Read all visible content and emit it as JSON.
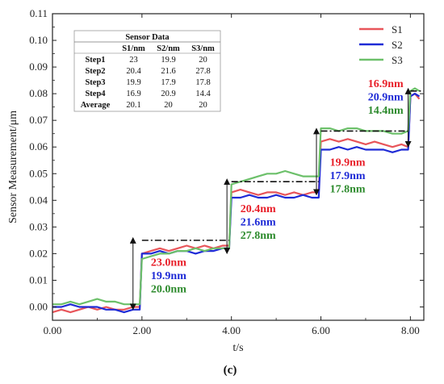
{
  "panel_label": "(c)",
  "chart_data": {
    "type": "line",
    "xlabel": "t/s",
    "ylabel": "Sensor Measurement/μm",
    "xlim": [
      0,
      8.3
    ],
    "ylim": [
      -0.005,
      0.11
    ],
    "xticks": [
      "0.00",
      "2.00",
      "4.00",
      "6.00",
      "8.00"
    ],
    "xtick_values": [
      0,
      2,
      4,
      6,
      8
    ],
    "yticks": [
      "0.00",
      "0.01",
      "0.02",
      "0.03",
      "0.04",
      "0.05",
      "0.06",
      "0.07",
      "0.08",
      "0.09",
      "0.10",
      "0.11"
    ],
    "ytick_values": [
      0,
      0.01,
      0.02,
      0.03,
      0.04,
      0.05,
      0.06,
      0.07,
      0.08,
      0.09,
      0.1,
      0.11
    ],
    "legend_position": "top-right",
    "series": [
      {
        "name": "S1",
        "color": "#e8555a",
        "x": [
          0.0,
          0.2,
          0.4,
          0.6,
          0.8,
          1.0,
          1.2,
          1.4,
          1.6,
          1.8,
          1.95,
          2.0,
          2.2,
          2.4,
          2.6,
          2.8,
          3.0,
          3.2,
          3.4,
          3.6,
          3.8,
          3.95,
          4.0,
          4.2,
          4.4,
          4.6,
          4.8,
          5.0,
          5.2,
          5.4,
          5.6,
          5.8,
          5.95,
          6.0,
          6.2,
          6.4,
          6.6,
          6.8,
          7.0,
          7.2,
          7.4,
          7.6,
          7.8,
          7.95,
          8.0,
          8.1,
          8.2
        ],
        "y": [
          -0.002,
          -0.001,
          -0.002,
          -0.001,
          0.0,
          -0.001,
          0.0,
          -0.001,
          -0.001,
          0.0,
          0.0,
          0.02,
          0.021,
          0.022,
          0.021,
          0.022,
          0.023,
          0.022,
          0.023,
          0.022,
          0.023,
          0.023,
          0.043,
          0.044,
          0.043,
          0.042,
          0.043,
          0.043,
          0.042,
          0.043,
          0.042,
          0.043,
          0.043,
          0.062,
          0.063,
          0.062,
          0.063,
          0.062,
          0.061,
          0.062,
          0.061,
          0.06,
          0.061,
          0.06,
          0.079,
          0.08,
          0.078
        ]
      },
      {
        "name": "S2",
        "color": "#1f2bd6",
        "x": [
          0.0,
          0.2,
          0.4,
          0.6,
          0.8,
          1.0,
          1.2,
          1.4,
          1.6,
          1.8,
          1.95,
          2.0,
          2.2,
          2.4,
          2.6,
          2.8,
          3.0,
          3.2,
          3.4,
          3.6,
          3.8,
          3.95,
          4.0,
          4.2,
          4.4,
          4.6,
          4.8,
          5.0,
          5.2,
          5.4,
          5.6,
          5.8,
          5.95,
          6.0,
          6.2,
          6.4,
          6.6,
          6.8,
          7.0,
          7.2,
          7.4,
          7.6,
          7.8,
          7.95,
          8.0,
          8.1,
          8.2
        ],
        "y": [
          0.0,
          0.0,
          0.001,
          0.0,
          0.0,
          0.0,
          -0.001,
          -0.001,
          -0.002,
          -0.001,
          -0.001,
          0.02,
          0.02,
          0.021,
          0.02,
          0.021,
          0.021,
          0.02,
          0.021,
          0.021,
          0.022,
          0.022,
          0.041,
          0.041,
          0.042,
          0.041,
          0.041,
          0.042,
          0.041,
          0.041,
          0.042,
          0.041,
          0.041,
          0.059,
          0.059,
          0.06,
          0.059,
          0.06,
          0.059,
          0.059,
          0.059,
          0.058,
          0.059,
          0.059,
          0.079,
          0.08,
          0.079
        ]
      },
      {
        "name": "S3",
        "color": "#6cc06a",
        "x": [
          0.0,
          0.2,
          0.4,
          0.6,
          0.8,
          1.0,
          1.2,
          1.4,
          1.6,
          1.8,
          1.95,
          2.0,
          2.2,
          2.4,
          2.6,
          2.8,
          3.0,
          3.2,
          3.4,
          3.6,
          3.8,
          3.95,
          4.0,
          4.2,
          4.4,
          4.6,
          4.8,
          5.0,
          5.2,
          5.4,
          5.6,
          5.8,
          5.95,
          6.0,
          6.2,
          6.4,
          6.6,
          6.8,
          7.0,
          7.2,
          7.4,
          7.6,
          7.8,
          7.95,
          8.0,
          8.1,
          8.2
        ],
        "y": [
          0.001,
          0.001,
          0.002,
          0.001,
          0.002,
          0.003,
          0.002,
          0.002,
          0.001,
          0.001,
          0.001,
          0.018,
          0.019,
          0.02,
          0.02,
          0.021,
          0.021,
          0.022,
          0.021,
          0.022,
          0.022,
          0.022,
          0.046,
          0.047,
          0.048,
          0.049,
          0.05,
          0.05,
          0.051,
          0.05,
          0.049,
          0.049,
          0.049,
          0.067,
          0.067,
          0.066,
          0.067,
          0.067,
          0.066,
          0.066,
          0.066,
          0.065,
          0.065,
          0.066,
          0.081,
          0.082,
          0.081
        ]
      }
    ],
    "reference_steps": {
      "color": "#111111",
      "segments": [
        {
          "x": [
            2.0,
            3.95
          ],
          "y": 0.025
        },
        {
          "x": [
            4.0,
            5.95
          ],
          "y": 0.047
        },
        {
          "x": [
            6.0,
            7.95
          ],
          "y": 0.066
        },
        {
          "x": [
            8.0,
            8.3
          ],
          "y": 0.081
        }
      ]
    },
    "step_arrows": [
      {
        "x": 1.8,
        "from": 0.0,
        "to": 0.025
      },
      {
        "x": 3.9,
        "from": 0.021,
        "to": 0.047
      },
      {
        "x": 5.9,
        "from": 0.043,
        "to": 0.066
      },
      {
        "x": 7.95,
        "from": 0.061,
        "to": 0.081
      }
    ],
    "annotations": [
      {
        "x": 2.2,
        "lines": [
          {
            "text": "23.0nm",
            "color": "#e8202a",
            "y": 0.0155
          },
          {
            "text": "19.9nm",
            "color": "#1f2bd6",
            "y": 0.0105
          },
          {
            "text": "20.0nm",
            "color": "#2e8b2e",
            "y": 0.0055
          }
        ]
      },
      {
        "x": 4.2,
        "lines": [
          {
            "text": "20.4nm",
            "color": "#e8202a",
            "y": 0.0355
          },
          {
            "text": "21.6nm",
            "color": "#1f2bd6",
            "y": 0.0305
          },
          {
            "text": "27.8nm",
            "color": "#2e8b2e",
            "y": 0.0255
          }
        ]
      },
      {
        "x": 6.2,
        "lines": [
          {
            "text": "19.9nm",
            "color": "#e8202a",
            "y": 0.053
          },
          {
            "text": "17.9nm",
            "color": "#1f2bd6",
            "y": 0.048
          },
          {
            "text": "17.8nm",
            "color": "#2e8b2e",
            "y": 0.043
          }
        ]
      },
      {
        "x": 7.05,
        "lines": [
          {
            "text": "16.9nm",
            "color": "#e8202a",
            "y": 0.0825
          },
          {
            "text": "20.9nm",
            "color": "#1f2bd6",
            "y": 0.0775
          },
          {
            "text": "14.4nm",
            "color": "#2e8b2e",
            "y": 0.0725
          }
        ]
      }
    ],
    "table": {
      "title": "Sensor Data",
      "columns": [
        "",
        "S1/nm",
        "S2/nm",
        "S3/nm"
      ],
      "rows": [
        [
          "Step1",
          "23",
          "19.9",
          "20"
        ],
        [
          "Step2",
          "20.4",
          "21.6",
          "27.8"
        ],
        [
          "Step3",
          "19.9",
          "17.9",
          "17.8"
        ],
        [
          "Step4",
          "16.9",
          "20.9",
          "14.4"
        ],
        [
          "Average",
          "20.1",
          "20",
          "20"
        ]
      ]
    }
  }
}
